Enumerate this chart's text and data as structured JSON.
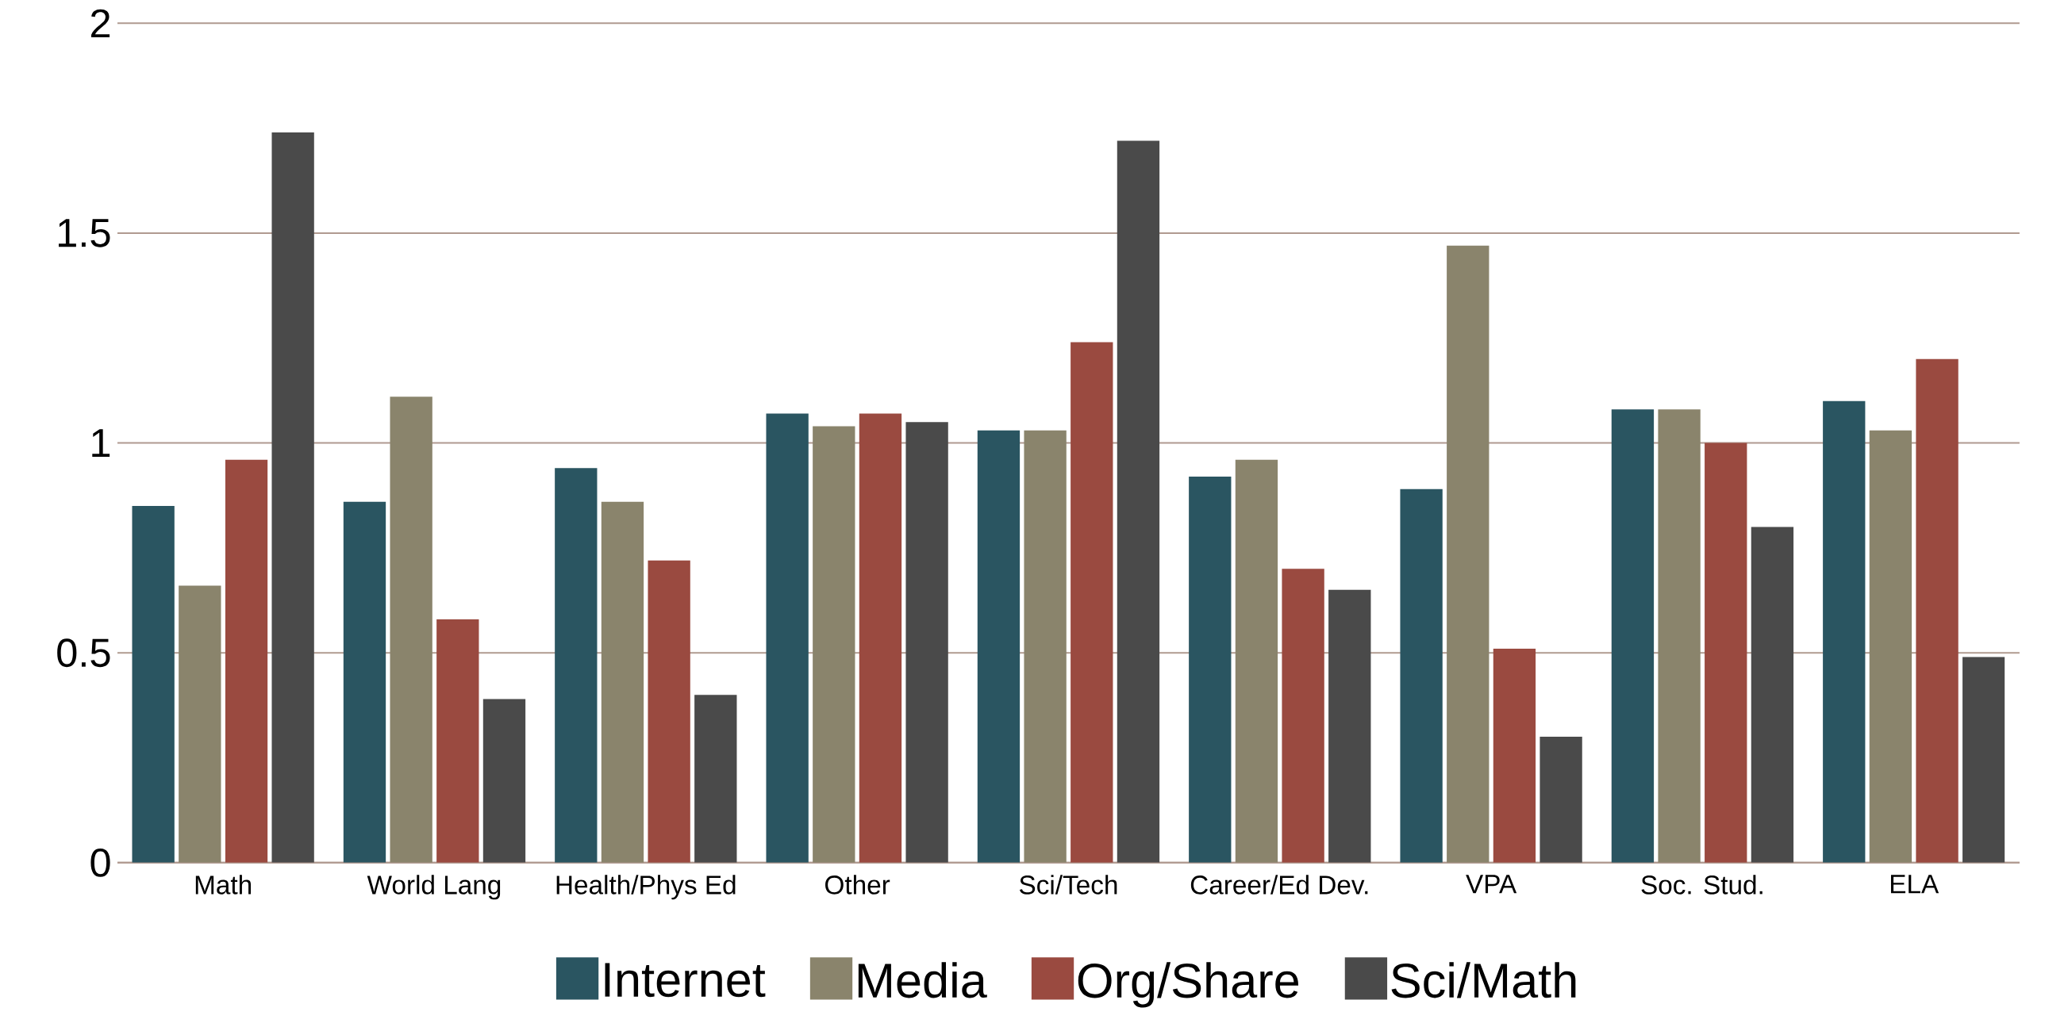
{
  "chart_data": {
    "type": "bar",
    "categories": [
      "Math",
      "World Lang",
      "Health/Phys Ed",
      "Other",
      "Sci/Tech",
      "Career/Ed Dev.",
      "VPA",
      "Soc. Stud.",
      "ELA"
    ],
    "ylim": [
      0,
      2
    ],
    "yticks": [
      0,
      0.5,
      1,
      1.5,
      2
    ],
    "grid": "y",
    "legend": "bottom",
    "series": [
      {
        "name": "Internet",
        "color": "#2a5561",
        "values": [
          0.85,
          0.86,
          0.94,
          1.07,
          1.03,
          0.92,
          0.89,
          1.08,
          1.1
        ]
      },
      {
        "name": "Media",
        "color": "#8a846c",
        "values": [
          0.66,
          1.11,
          0.86,
          1.04,
          1.03,
          0.96,
          1.47,
          1.08,
          1.03
        ]
      },
      {
        "name": "Org/Share",
        "color": "#9a4a40",
        "values": [
          0.96,
          0.58,
          0.72,
          1.07,
          1.24,
          0.7,
          0.51,
          1.0,
          1.2
        ]
      },
      {
        "name": "Sci/Math",
        "color": "#4a4a4a",
        "values": [
          1.74,
          0.39,
          0.4,
          1.05,
          1.72,
          0.65,
          0.3,
          0.8,
          0.49
        ]
      }
    ]
  }
}
